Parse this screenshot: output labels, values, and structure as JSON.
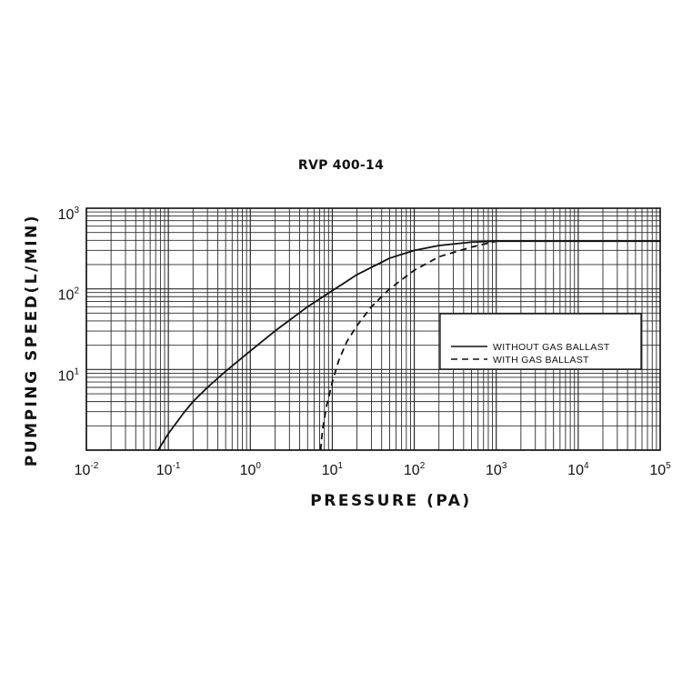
{
  "chart_data": {
    "type": "line",
    "title": "RVP 400-14",
    "xlabel": "PRESSURE (PA)",
    "ylabel": "PUMPING SPEED(L/MIN)",
    "x_scale": "log",
    "y_scale": "log",
    "xlim": [
      0.01,
      100000
    ],
    "ylim": [
      1,
      1000
    ],
    "grid": true,
    "legend_position": "right",
    "x_ticks": [
      {
        "base": "10",
        "exp": "-2"
      },
      {
        "base": "10",
        "exp": "-1"
      },
      {
        "base": "10",
        "exp": "0"
      },
      {
        "base": "10",
        "exp": "1"
      },
      {
        "base": "10",
        "exp": "2"
      },
      {
        "base": "10",
        "exp": "3"
      },
      {
        "base": "10",
        "exp": "4"
      },
      {
        "base": "10",
        "exp": "5"
      }
    ],
    "y_ticks": [
      {
        "base": "10",
        "exp": "1",
        "value": 10
      },
      {
        "base": "10",
        "exp": "2",
        "value": 100
      },
      {
        "base": "10",
        "exp": "3",
        "value": 1000
      }
    ],
    "series": [
      {
        "name": "WITHOUT GAS BALLAST",
        "style": "solid",
        "color": "#111111",
        "x": [
          0.075,
          0.1,
          0.15,
          0.2,
          0.3,
          0.5,
          1,
          2,
          5,
          10,
          20,
          50,
          100,
          200,
          500,
          1000,
          100000
        ],
        "y": [
          1,
          1.6,
          2.8,
          4,
          6,
          9.5,
          17,
          30,
          60,
          95,
          150,
          240,
          300,
          345,
          380,
          390,
          390
        ]
      },
      {
        "name": "WITH GAS BALLAST",
        "style": "dashed",
        "color": "#111111",
        "x": [
          7.2,
          7.6,
          8.5,
          10,
          12,
          15,
          20,
          30,
          50,
          100,
          200,
          500,
          1000
        ],
        "y": [
          1,
          1.8,
          3.5,
          7,
          13,
          22,
          35,
          60,
          100,
          170,
          250,
          330,
          390
        ]
      }
    ]
  },
  "colors": {
    "grid": "#2a2a2a",
    "line": "#111111",
    "background": "#ffffff"
  }
}
